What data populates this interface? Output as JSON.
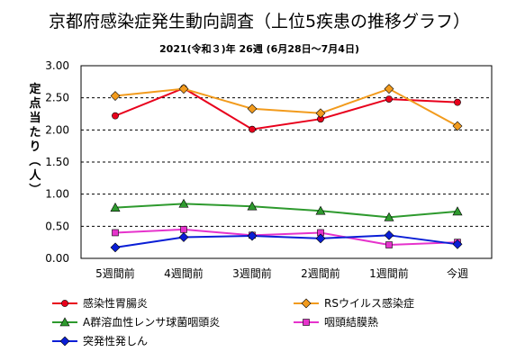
{
  "chart_data": {
    "type": "line",
    "title": "京都府感染症発生動向調査（上位5疾患の推移グラフ）",
    "subtitle": "2021(令和３)年 26週 (6月28日～7月4日)",
    "ylabel": "定点当たり（人）",
    "categories": [
      "5週間前",
      "4週間前",
      "3週間前",
      "2週間前",
      "1週間前",
      "今週"
    ],
    "ylim": [
      0,
      3.0
    ],
    "yticks": [
      "0.00",
      "0.50",
      "1.00",
      "1.50",
      "2.00",
      "2.50",
      "3.00"
    ],
    "grid": "horizontal-dashed",
    "legend_position": "bottom",
    "series": [
      {
        "name": "感染性胃腸炎",
        "color": "#e8001c",
        "marker": "circle",
        "values": [
          2.22,
          2.65,
          2.01,
          2.17,
          2.48,
          2.43
        ]
      },
      {
        "name": "RSウイルス感染症",
        "color": "#f29b1d",
        "marker": "diamond",
        "values": [
          2.53,
          2.64,
          2.33,
          2.26,
          2.64,
          2.06
        ]
      },
      {
        "name": "A群溶血性レンサ球菌咽頭炎",
        "color": "#2e9a2e",
        "marker": "triangle",
        "values": [
          0.79,
          0.85,
          0.81,
          0.74,
          0.64,
          0.73
        ]
      },
      {
        "name": "咽頭結膜熱",
        "color": "#e633cc",
        "marker": "square",
        "values": [
          0.4,
          0.45,
          0.36,
          0.4,
          0.21,
          0.25
        ]
      },
      {
        "name": "突発性発しん",
        "color": "#0a1ed6",
        "marker": "diamond",
        "values": [
          0.17,
          0.33,
          0.35,
          0.31,
          0.36,
          0.22
        ]
      }
    ]
  }
}
